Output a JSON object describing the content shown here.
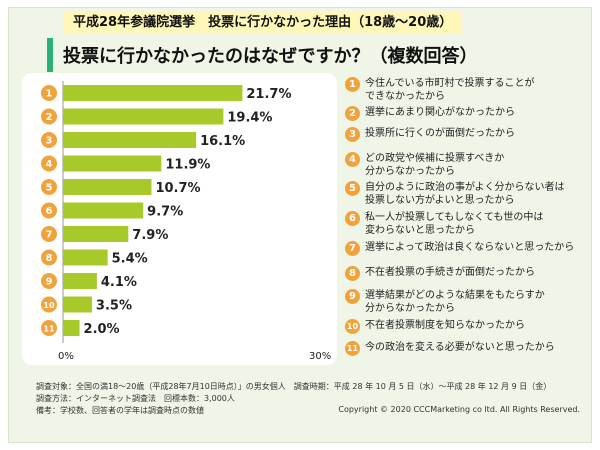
{
  "header": {
    "tag": "平成28年参議院選挙　投票に行かなかった理由（18歳〜20歳）",
    "title": "投票に行かなかったのはなぜですか？（複数回答）"
  },
  "chart_data": {
    "type": "bar",
    "orientation": "horizontal",
    "categories": [
      "1",
      "2",
      "3",
      "4",
      "5",
      "6",
      "7",
      "8",
      "9",
      "10",
      "11"
    ],
    "values": [
      21.7,
      19.4,
      16.1,
      11.9,
      10.7,
      9.7,
      7.9,
      5.4,
      4.1,
      3.5,
      2.0
    ],
    "value_labels": [
      "21.7%",
      "19.4%",
      "16.1%",
      "11.9%",
      "10.7%",
      "9.7%",
      "7.9%",
      "5.4%",
      "4.1%",
      "3.5%",
      "2.0%"
    ],
    "xlim": [
      0,
      30
    ],
    "xtick_labels": [
      "0%",
      "30%"
    ],
    "bar_color": "#a8c92a",
    "marker_color": "#f2a23a"
  },
  "legend": [
    {
      "num": "1",
      "lines": [
        "今住んでいる市町村で投票することが",
        "できなかったから"
      ]
    },
    {
      "num": "2",
      "lines": [
        "選挙にあまり関心がなかったから"
      ]
    },
    {
      "num": "3",
      "lines": [
        "投票所に行くのが面倒だったから"
      ]
    },
    {
      "num": "4",
      "lines": [
        "どの政党や候補に投票すべきか",
        "分からなかったから"
      ]
    },
    {
      "num": "5",
      "lines": [
        "自分のように政治の事がよく分からない者は",
        "投票しない方がよいと思ったから"
      ]
    },
    {
      "num": "6",
      "lines": [
        "私一人が投票してもしなくても世の中は",
        "変わらないと思ったから"
      ]
    },
    {
      "num": "7",
      "lines": [
        "選挙によって政治は良くならないと思ったから"
      ]
    },
    {
      "num": "8",
      "lines": [
        "不在者投票の手続きが面倒だったから"
      ]
    },
    {
      "num": "9",
      "lines": [
        "選挙結果がどのような結果をもたらすか",
        "分からなかったから"
      ]
    },
    {
      "num": "10",
      "lines": [
        "不在者投票制度を知らなかったから"
      ]
    },
    {
      "num": "11",
      "lines": [
        "今の政治を変える必要がないと思ったから"
      ]
    }
  ],
  "footer": {
    "line1": "調査対象：全国の満18〜20歳（平成28年7月10日時点）」の男女個人　調査時期：平成 28 年 10 月 5 日（水）〜平成 28 年 12 月 9 日（金）",
    "line2": "調査方法：インターネット調査法　回標本数：3,000人",
    "line3": "備考：学校数、回答者の学年は調査時点の数値",
    "copyright": "Copyright © 2020 CCCMarketing co ltd. All Rights Reserved."
  }
}
